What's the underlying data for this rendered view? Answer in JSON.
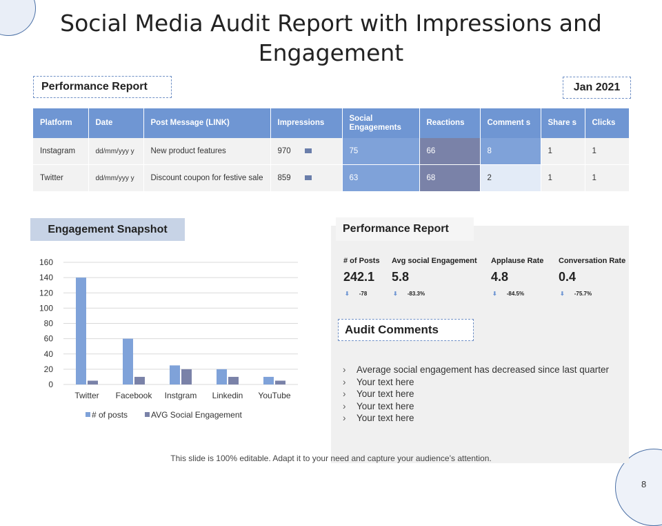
{
  "title": "Social Media Audit Report with Impressions and Engagement",
  "report_label": "Performance Report",
  "report_date": "Jan 2021",
  "table": {
    "headers": [
      "Platform",
      "Date",
      "Post Message (LINK)",
      "Impressions",
      "Social Engagements",
      "Reactions",
      "Comment s",
      "Share s",
      "Clicks"
    ],
    "rows": [
      [
        "Instagram",
        "dd/mm/yyy y",
        "New product features",
        "970",
        "75",
        "66",
        "8",
        "1",
        "1"
      ],
      [
        "Twitter",
        "dd/mm/yyy y",
        "Discount coupon for festive sale",
        "859",
        "63",
        "68",
        "2",
        "1",
        "1"
      ]
    ]
  },
  "snapshot_label": "Engagement Snapshot",
  "chart_data": {
    "type": "bar",
    "categories": [
      "Twitter",
      "Facebook",
      "Instgram",
      "Linkedin",
      "YouTube"
    ],
    "series": [
      {
        "name": "# of posts",
        "values": [
          140,
          60,
          25,
          20,
          10
        ],
        "color": "#7fa2d9"
      },
      {
        "name": "AVG Social Engagement",
        "values": [
          5,
          10,
          20,
          10,
          5
        ],
        "color": "#7a82a8"
      }
    ],
    "yticks": [
      0,
      20,
      40,
      60,
      80,
      100,
      120,
      140,
      160
    ],
    "ylim": [
      0,
      160
    ],
    "grid": true,
    "legend": "bottom"
  },
  "performance": {
    "label": "Performance Report",
    "metrics": [
      {
        "label": "# of Posts",
        "value": "242.1",
        "delta": "-78"
      },
      {
        "label": "Avg social Engagement",
        "value": "5.8",
        "delta": "-83.3%"
      },
      {
        "label": "Applause Rate",
        "value": "4.8",
        "delta": "-84.5%"
      },
      {
        "label": "Conversation Rate",
        "value": "0.4",
        "delta": "-75.7%"
      }
    ]
  },
  "audit": {
    "label": "Audit Comments",
    "items": [
      "Average social engagement has decreased since last quarter",
      "Your text here",
      "Your text here",
      "Your text here",
      "Your text here"
    ]
  },
  "footer": "This slide is 100% editable. Adapt it to your need and capture your audience’s attention.",
  "page_number": "8",
  "colors": {
    "header": "#6f96d3",
    "accent_dark": "#7a82a8",
    "accent_light": "#7fa2d9"
  }
}
